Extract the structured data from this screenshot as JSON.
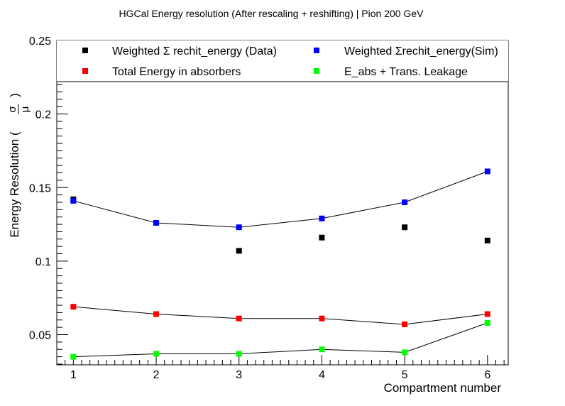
{
  "chart_data": {
    "type": "scatter",
    "title": "HGCal Energy resolution (After rescaling + reshifting) | Pion 200 GeV",
    "xlabel": "Compartment number",
    "ylabel": "Energy Resolution (",
    "ylabel_frac_num": "σ",
    "ylabel_frac_den": "μ",
    "ylabel_close": ")",
    "xlim": [
      0.8,
      6.25
    ],
    "ylim": [
      0.0295,
      0.25
    ],
    "x_ticks": [
      1,
      2,
      3,
      4,
      5,
      6
    ],
    "x_tick_labels": [
      "1",
      "2",
      "3",
      "4",
      "5",
      "6"
    ],
    "y_ticks": [
      0.05,
      0.1,
      0.15,
      0.2,
      0.25
    ],
    "y_tick_labels": [
      "0.05",
      "0.1",
      "0.15",
      "0.2",
      "0.25"
    ],
    "grid": false,
    "legend_position": "top",
    "series": [
      {
        "name": "Weighted Σ rechit_energy (Data)",
        "color": "#000000",
        "line": false,
        "x": [
          1,
          2,
          3,
          4,
          5,
          6
        ],
        "y": [
          0.142,
          0.126,
          0.107,
          0.116,
          0.123,
          0.114
        ]
      },
      {
        "name": "Weighted Σrechit_energy(Sim)",
        "color": "#0000ff",
        "line": true,
        "x": [
          1,
          2,
          3,
          4,
          5,
          6
        ],
        "y": [
          0.141,
          0.126,
          0.123,
          0.129,
          0.14,
          0.161
        ]
      },
      {
        "name": "Total Energy in absorbers",
        "color": "#ff0000",
        "line": true,
        "x": [
          1,
          2,
          3,
          4,
          5,
          6
        ],
        "y": [
          0.069,
          0.064,
          0.061,
          0.061,
          0.057,
          0.064
        ]
      },
      {
        "name": "E_abs + Trans. Leakage",
        "color": "#00ff00",
        "line": true,
        "x": [
          1,
          2,
          3,
          4,
          5,
          6
        ],
        "y": [
          0.035,
          0.037,
          0.037,
          0.04,
          0.038,
          0.058
        ]
      }
    ]
  }
}
